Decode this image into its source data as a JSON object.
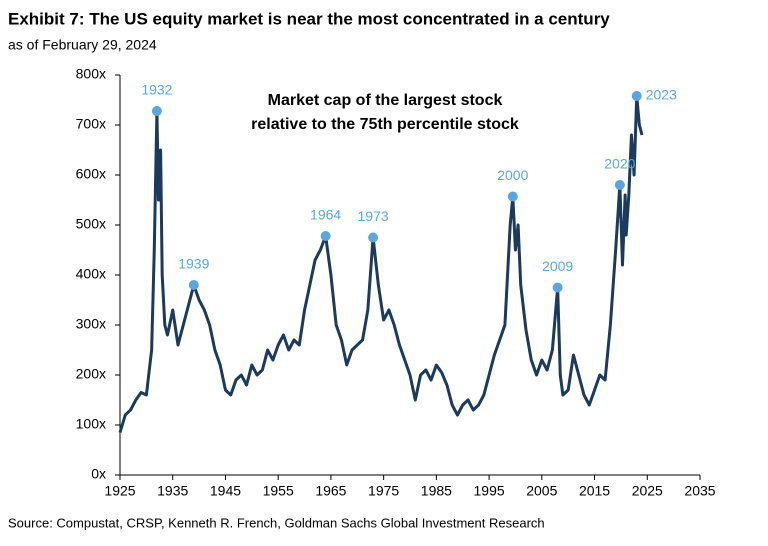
{
  "chart_data": {
    "type": "line",
    "title": "Exhibit 7: The US equity market is near the most concentrated in a century",
    "subtitle": "as of February 29, 2024",
    "source": "Source: Compustat, CRSP, Kenneth R. French, Goldman Sachs Global Investment Research",
    "inner_title": [
      "Market cap of the largest stock",
      "relative to the 75th percentile stock"
    ],
    "xlim": [
      1925,
      2035
    ],
    "xticks": [
      1925,
      1935,
      1945,
      1955,
      1965,
      1975,
      1985,
      1995,
      2005,
      2015,
      2025,
      2035
    ],
    "ylim": [
      0,
      800
    ],
    "yticks": [
      {
        "value": 0,
        "label": "0x"
      },
      {
        "value": 100,
        "label": "100x"
      },
      {
        "value": 200,
        "label": "200x"
      },
      {
        "value": 300,
        "label": "300x"
      },
      {
        "value": 400,
        "label": "400x"
      },
      {
        "value": 500,
        "label": "500x"
      },
      {
        "value": 600,
        "label": "600x"
      },
      {
        "value": 700,
        "label": "700x"
      },
      {
        "value": 800,
        "label": "800x"
      }
    ],
    "series": [
      {
        "color": "#1b3a5c",
        "x": [
          1925,
          1926,
          1927,
          1928,
          1929,
          1930,
          1931,
          1931.5,
          1932,
          1932.3,
          1932.7,
          1933,
          1933.5,
          1934,
          1935,
          1936,
          1937,
          1938,
          1939,
          1940,
          1941,
          1942,
          1943,
          1944,
          1945,
          1946,
          1947,
          1948,
          1949,
          1950,
          1951,
          1952,
          1953,
          1954,
          1955,
          1956,
          1957,
          1958,
          1959,
          1960,
          1961,
          1962,
          1963,
          1964,
          1965,
          1966,
          1967,
          1968,
          1969,
          1970,
          1971,
          1972,
          1973,
          1974,
          1975,
          1976,
          1977,
          1978,
          1979,
          1980,
          1981,
          1982,
          1983,
          1984,
          1985,
          1986,
          1987,
          1988,
          1989,
          1990,
          1991,
          1992,
          1993,
          1994,
          1995,
          1996,
          1997,
          1998,
          1999,
          1999.5,
          2000,
          2000.5,
          2001,
          2002,
          2003,
          2004,
          2005,
          2006,
          2007,
          2008,
          2008.5,
          2009,
          2010,
          2011,
          2012,
          2013,
          2014,
          2015,
          2016,
          2017,
          2018,
          2019,
          2019.8,
          2020.3,
          2020.8,
          2021,
          2021.5,
          2022,
          2022.5,
          2023,
          2023.5,
          2024
        ],
        "values": [
          85,
          120,
          130,
          150,
          165,
          160,
          250,
          450,
          728,
          550,
          650,
          400,
          300,
          280,
          330,
          260,
          300,
          340,
          380,
          350,
          330,
          300,
          250,
          220,
          170,
          160,
          190,
          200,
          180,
          220,
          200,
          210,
          250,
          230,
          260,
          280,
          250,
          270,
          260,
          330,
          380,
          430,
          450,
          478,
          400,
          300,
          270,
          220,
          250,
          260,
          270,
          330,
          475,
          380,
          310,
          330,
          300,
          260,
          230,
          200,
          150,
          200,
          210,
          190,
          220,
          205,
          180,
          140,
          120,
          140,
          150,
          130,
          140,
          160,
          200,
          240,
          270,
          300,
          500,
          557,
          450,
          500,
          380,
          290,
          230,
          200,
          230,
          210,
          250,
          375,
          200,
          160,
          170,
          240,
          200,
          160,
          140,
          170,
          200,
          190,
          300,
          450,
          580,
          420,
          560,
          480,
          560,
          680,
          600,
          758,
          700,
          680
        ]
      }
    ],
    "annotation_color": "#5aa7e0",
    "annotations": [
      {
        "label": "1932",
        "x": 1932,
        "y": 728
      },
      {
        "label": "1939",
        "x": 1939,
        "y": 380
      },
      {
        "label": "1964",
        "x": 1964,
        "y": 478
      },
      {
        "label": "1973",
        "x": 1973,
        "y": 475
      },
      {
        "label": "2000",
        "x": 1999.5,
        "y": 557
      },
      {
        "label": "2009",
        "x": 2008,
        "y": 375
      },
      {
        "label": "2020",
        "x": 2019.8,
        "y": 580
      },
      {
        "label": "2023",
        "x": 2023,
        "y": 758
      }
    ]
  }
}
